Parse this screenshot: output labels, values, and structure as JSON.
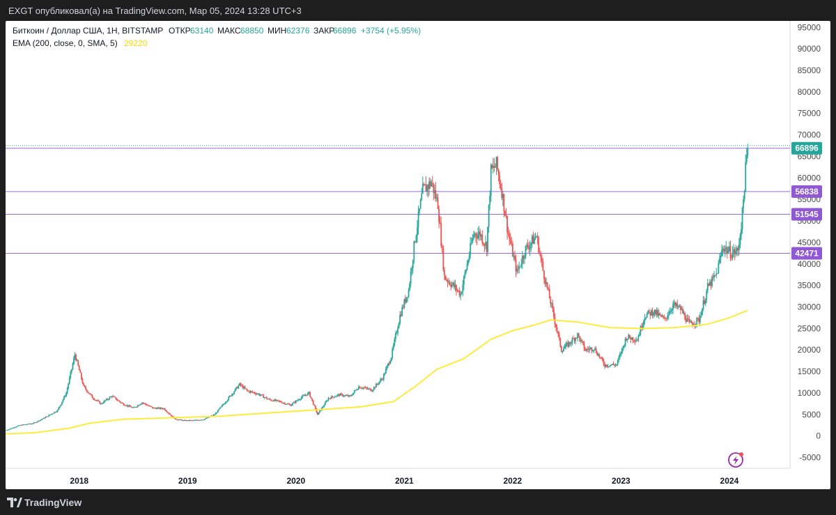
{
  "header": {
    "publish_line": "EXGT опубликовал(а) на TradingView.com, Мар 05, 2024 13:28 UTC+3"
  },
  "footer": {
    "brand": "TradingView"
  },
  "legend": {
    "symbol": "Биткоин / Доллар США, 1Н, BITSTAMP",
    "open_label": "ОТКР",
    "open_value": "63140",
    "high_label": "МАКС",
    "high_value": "68850",
    "low_label": "МИН",
    "low_value": "62376",
    "close_label": "ЗАКР",
    "close_value": "66896",
    "change": "+3754 (+5.95%)",
    "ema_label": "EMA (200, close, 0, SMA, 5)",
    "ema_value": "29220"
  },
  "colors": {
    "up": "#26a69a",
    "down": "#ef5350",
    "ema": "#ffeb3b",
    "level": "#9c6ade",
    "price_tag": "#26a69a",
    "level_tag": "#8e59d3",
    "text": "#131722",
    "muted": "#4a4a4a"
  },
  "chart_data": {
    "type": "candlestick",
    "title": "Биткоин / Доллар США, 1Н, BITSTAMP",
    "y_axis": {
      "min": -7500,
      "max": 96500,
      "ticks": [
        95000,
        90000,
        85000,
        80000,
        75000,
        70000,
        65000,
        60000,
        55000,
        50000,
        45000,
        40000,
        35000,
        30000,
        25000,
        20000,
        15000,
        10000,
        5000,
        0,
        -5000
      ]
    },
    "x_axis": {
      "start_year": 2017.32,
      "end_year": 2024.56,
      "ticks": [
        "2018",
        "2019",
        "2020",
        "2021",
        "2022",
        "2023",
        "2024"
      ]
    },
    "current_price": 66896,
    "levels": [
      66896,
      56838,
      51545,
      42471
    ],
    "price_path": [
      [
        2017.32,
        1300
      ],
      [
        2017.45,
        2500
      ],
      [
        2017.58,
        3000
      ],
      [
        2017.7,
        4500
      ],
      [
        2017.8,
        6000
      ],
      [
        2017.88,
        10000
      ],
      [
        2017.96,
        19000
      ],
      [
        2018.04,
        11500
      ],
      [
        2018.12,
        9000
      ],
      [
        2018.2,
        7500
      ],
      [
        2018.3,
        9300
      ],
      [
        2018.4,
        7500
      ],
      [
        2018.5,
        6500
      ],
      [
        2018.58,
        7800
      ],
      [
        2018.68,
        6500
      ],
      [
        2018.78,
        6400
      ],
      [
        2018.88,
        4000
      ],
      [
        2018.96,
        3600
      ],
      [
        2019.05,
        3600
      ],
      [
        2019.15,
        3900
      ],
      [
        2019.25,
        5000
      ],
      [
        2019.35,
        8000
      ],
      [
        2019.48,
        12000
      ],
      [
        2019.55,
        10500
      ],
      [
        2019.65,
        9800
      ],
      [
        2019.75,
        8500
      ],
      [
        2019.85,
        8000
      ],
      [
        2019.95,
        7200
      ],
      [
        2020.05,
        9000
      ],
      [
        2020.12,
        10000
      ],
      [
        2020.2,
        5000
      ],
      [
        2020.3,
        8800
      ],
      [
        2020.4,
        9600
      ],
      [
        2020.5,
        9200
      ],
      [
        2020.58,
        11500
      ],
      [
        2020.7,
        10700
      ],
      [
        2020.8,
        13500
      ],
      [
        2020.88,
        18500
      ],
      [
        2020.96,
        28000
      ],
      [
        2021.04,
        34000
      ],
      [
        2021.1,
        46000
      ],
      [
        2021.17,
        57000
      ],
      [
        2021.25,
        59000
      ],
      [
        2021.31,
        54000
      ],
      [
        2021.37,
        37000
      ],
      [
        2021.45,
        35000
      ],
      [
        2021.52,
        33000
      ],
      [
        2021.58,
        40000
      ],
      [
        2021.64,
        47000
      ],
      [
        2021.7,
        47000
      ],
      [
        2021.76,
        44000
      ],
      [
        2021.8,
        61500
      ],
      [
        2021.85,
        63000
      ],
      [
        2021.9,
        57000
      ],
      [
        2021.96,
        47000
      ],
      [
        2022.04,
        38000
      ],
      [
        2022.12,
        43500
      ],
      [
        2022.22,
        46500
      ],
      [
        2022.28,
        38500
      ],
      [
        2022.36,
        30000
      ],
      [
        2022.45,
        20000
      ],
      [
        2022.52,
        21500
      ],
      [
        2022.6,
        23500
      ],
      [
        2022.67,
        20000
      ],
      [
        2022.75,
        20500
      ],
      [
        2022.85,
        16500
      ],
      [
        2022.96,
        16600
      ],
      [
        2023.05,
        23000
      ],
      [
        2023.15,
        22500
      ],
      [
        2023.22,
        28000
      ],
      [
        2023.3,
        29000
      ],
      [
        2023.4,
        27000
      ],
      [
        2023.48,
        30500
      ],
      [
        2023.55,
        29500
      ],
      [
        2023.63,
        26000
      ],
      [
        2023.72,
        27000
      ],
      [
        2023.8,
        34500
      ],
      [
        2023.88,
        37500
      ],
      [
        2023.94,
        44000
      ],
      [
        2024.02,
        42500
      ],
      [
        2024.08,
        43000
      ],
      [
        2024.12,
        51500
      ],
      [
        2024.15,
        62000
      ],
      [
        2024.17,
        66896
      ]
    ],
    "ema_path": [
      [
        2017.32,
        500
      ],
      [
        2017.6,
        800
      ],
      [
        2017.9,
        1800
      ],
      [
        2018.1,
        3000
      ],
      [
        2018.4,
        3900
      ],
      [
        2018.9,
        4300
      ],
      [
        2019.3,
        4600
      ],
      [
        2019.7,
        5300
      ],
      [
        2020.2,
        6100
      ],
      [
        2020.6,
        6800
      ],
      [
        2020.9,
        8000
      ],
      [
        2021.1,
        11500
      ],
      [
        2021.3,
        15500
      ],
      [
        2021.55,
        18000
      ],
      [
        2021.8,
        22500
      ],
      [
        2022.0,
        24500
      ],
      [
        2022.2,
        25800
      ],
      [
        2022.35,
        27000
      ],
      [
        2022.6,
        26500
      ],
      [
        2022.9,
        25200
      ],
      [
        2023.2,
        25000
      ],
      [
        2023.5,
        25200
      ],
      [
        2023.8,
        26000
      ],
      [
        2024.0,
        27500
      ],
      [
        2024.17,
        29220
      ]
    ]
  }
}
